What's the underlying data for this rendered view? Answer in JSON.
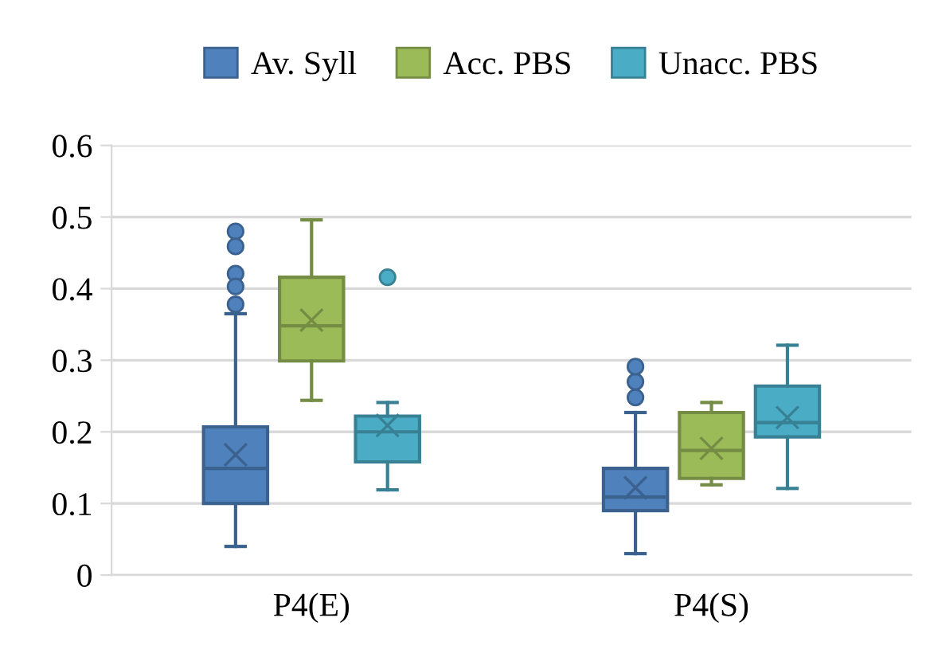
{
  "chart_data": {
    "type": "box",
    "categories": [
      "P4(E)",
      "P4(S)"
    ],
    "series": [
      {
        "name": "Av. Syll",
        "color": "#4f81bd",
        "boxes": [
          {
            "low": 0.04,
            "q1": 0.1,
            "median": 0.149,
            "q3": 0.207,
            "high": 0.365,
            "mean": 0.168,
            "outliers": [
              0.48,
              0.459,
              0.421,
              0.403,
              0.378
            ]
          },
          {
            "low": 0.03,
            "q1": 0.09,
            "median": 0.109,
            "q3": 0.149,
            "high": 0.227,
            "mean": 0.122,
            "outliers": [
              0.248,
              0.27,
              0.291
            ]
          }
        ]
      },
      {
        "name": "Acc. PBS",
        "color": "#9bbb59",
        "boxes": [
          {
            "low": 0.244,
            "q1": 0.299,
            "median": 0.348,
            "q3": 0.416,
            "high": 0.496,
            "mean": 0.356
          },
          {
            "low": 0.126,
            "q1": 0.135,
            "median": 0.174,
            "q3": 0.227,
            "high": 0.241,
            "mean": 0.177
          }
        ]
      },
      {
        "name": "Unacc. PBS",
        "color": "#4bacc6",
        "boxes": [
          {
            "low": 0.119,
            "q1": 0.158,
            "median": 0.2,
            "q3": 0.222,
            "high": 0.241,
            "mean": 0.209,
            "outliers": [
              0.416
            ]
          },
          {
            "low": 0.121,
            "q1": 0.193,
            "median": 0.213,
            "q3": 0.264,
            "high": 0.321,
            "mean": 0.22
          }
        ]
      }
    ],
    "ylim": [
      0,
      0.6
    ],
    "yticks": [
      0,
      0.1,
      0.2,
      0.3,
      0.4,
      0.5,
      0.6
    ],
    "grid": "y",
    "legend": "top"
  }
}
